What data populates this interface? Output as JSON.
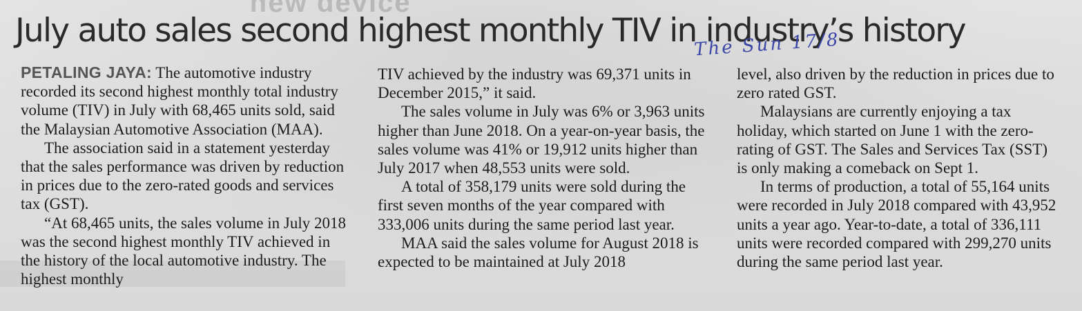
{
  "bleed_through": "ɘɔivɘb wɘn",
  "headline": "July auto sales second highest monthly TIV in industry’s history",
  "handwritten_note": "The Sun 17/8",
  "columns": [
    {
      "dateline": "PETALING JAYA:",
      "paragraphs": [
        "The automotive industry recorded its second highest monthly total industry volume (TIV) in July with 68,465 units sold, said the Malaysian Automotive Association (MAA).",
        "The association said in a statement yesterday that the sales performance was driven by reduction in prices due to the zero-rated goods and services tax (GST).",
        "“At 68,465 units, the sales volume in July 2018 was the second highest monthly TIV achieved in the history of the local automotive industry. The highest monthly"
      ]
    },
    {
      "paragraphs": [
        "TIV achieved by the industry was 69,371 units in December 2015,” it said.",
        "The sales volume in July was 6% or 3,963 units higher than June 2018. On a year-on-year basis, the sales volume was 41% or 19,912 units higher than July 2017 when 48,553 units were sold.",
        "A total of 358,179 units were sold during the first seven months of the year compared with 333,006 units during the same period last year.",
        "MAA said the sales volume for August 2018 is expected to be maintained at July 2018"
      ]
    },
    {
      "paragraphs": [
        "level, also driven by the reduction in prices due to zero rated GST.",
        "Malaysians are currently enjoying a tax holiday, which started on June 1 with the zero-rating of GST. The Sales and Services Tax (SST) is only making a comeback on Sept 1.",
        "In terms of production, a total of 55,164 units were recorded in July 2018 compared with 43,952 units a year ago. Year-to-date, a total of 336,111 units were recorded compared with 299,270 units during the same period last year."
      ]
    }
  ]
}
